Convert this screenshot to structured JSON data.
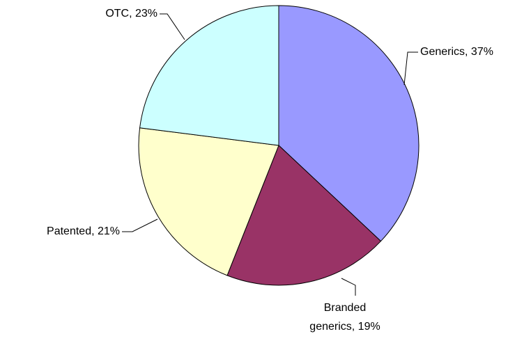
{
  "chart_data": {
    "type": "pie",
    "values": [
      37,
      19,
      21,
      23
    ],
    "value_labels": [
      "Generics, 37%",
      "Branded\ngenerics, 19%",
      "Patented, 21%",
      "OTC, 23%"
    ],
    "colors": [
      "#9999ff",
      "#993366",
      "#ffffcc",
      "#ccffff"
    ]
  }
}
